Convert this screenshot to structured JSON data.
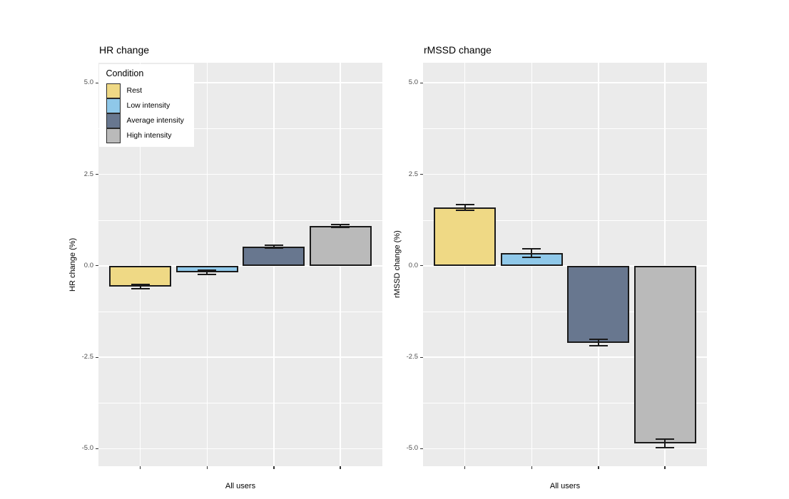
{
  "figure": {
    "background": "#FFFFFF"
  },
  "style": {
    "panel_background": "#EBEBEB",
    "grid_major_color": "#FFFFFF",
    "grid_minor_color": "#FFFFFF",
    "bar_border_color": "#1A1A1A",
    "error_bar_color": "#1A1A1A",
    "tick_label_color": "#4D4D4D",
    "tick_mark_color": "#333333",
    "title_color": "#000000",
    "legend_background": "#FFFFFF",
    "legend_swatch_border": "#2B2B2B"
  },
  "legend": {
    "title": "Condition",
    "position": "top-left-inside-left-panel",
    "items": [
      {
        "label": "Rest",
        "color": "#EFD985"
      },
      {
        "label": "Low intensity",
        "color": "#8FC8E9"
      },
      {
        "label": "Average intensity",
        "color": "#68778F"
      },
      {
        "label": "High intensity",
        "color": "#BABABA"
      }
    ]
  },
  "chart_data": [
    {
      "type": "bar",
      "title": "HR change",
      "xlabel": "All users",
      "ylabel": "HR change (%)",
      "categories": [
        "Rest",
        "Low intensity",
        "Average intensity",
        "High intensity"
      ],
      "values": [
        -0.57,
        -0.18,
        0.52,
        1.09
      ],
      "errors": [
        0.05,
        0.06,
        0.04,
        0.04
      ],
      "x_group_label": "All users",
      "yticks": [
        5.0,
        2.5,
        0.0,
        -2.5,
        -5.0
      ],
      "ytick_labels": [
        "5.0",
        "2.5",
        "0.0",
        "-2.5",
        "-5.0"
      ],
      "ylim": [
        -5.48,
        5.55
      ],
      "grid": "major-and-minor",
      "x_tick_labels": [
        "",
        "",
        "",
        ""
      ]
    },
    {
      "type": "bar",
      "title": "rMSSD change",
      "xlabel": "All users",
      "ylabel": "rMSSD change (%)",
      "categories": [
        "Rest",
        "Low intensity",
        "Average intensity",
        "High intensity"
      ],
      "values": [
        1.6,
        0.35,
        -2.1,
        -4.85
      ],
      "errors": [
        0.08,
        0.12,
        0.09,
        0.12
      ],
      "x_group_label": "All users",
      "yticks": [
        5.0,
        2.5,
        0.0,
        -2.5,
        -5.0
      ],
      "ytick_labels": [
        "5.0",
        "2.5",
        "0.0",
        "-2.5",
        "-5.0"
      ],
      "ylim": [
        -5.48,
        5.55
      ],
      "grid": "major-and-minor",
      "x_tick_labels": [
        "",
        "",
        "",
        ""
      ]
    }
  ]
}
